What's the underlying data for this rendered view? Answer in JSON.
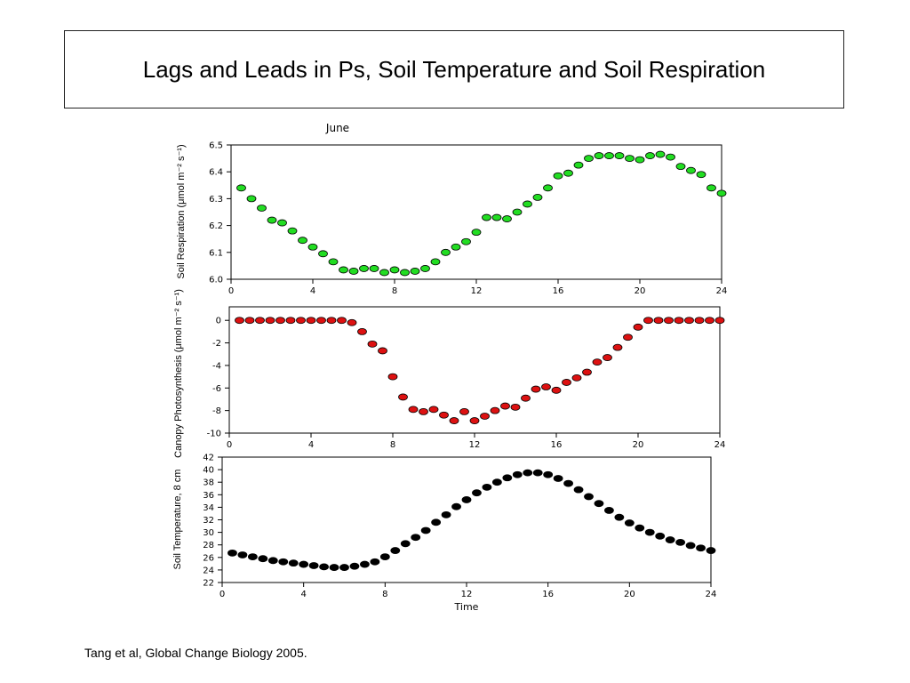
{
  "slide": {
    "title": "Lags and Leads in Ps, Soil Temperature and Soil Respiration",
    "caption": "Tang et al, Global Change Biology 2005."
  },
  "chart_data": [
    {
      "type": "scatter",
      "title": "June",
      "ylabel": "Soil Respiration (μmol m⁻² s⁻¹)",
      "xlabel": "",
      "xlim": [
        0,
        24
      ],
      "ylim": [
        6.0,
        6.5
      ],
      "xticks": [
        "0",
        "4",
        "8",
        "12",
        "16",
        "20",
        "24"
      ],
      "yticks": [
        "6.0",
        "6.1",
        "6.2",
        "6.3",
        "6.4",
        "6.5"
      ],
      "marker_color": "#22dd22",
      "x": [
        0.5,
        1.0,
        1.5,
        2.0,
        2.5,
        3.0,
        3.5,
        4.0,
        4.5,
        5.0,
        5.5,
        6.0,
        6.5,
        7.0,
        7.5,
        8.0,
        8.5,
        9.0,
        9.5,
        10.0,
        10.5,
        11.0,
        11.5,
        12.0,
        12.5,
        13.0,
        13.5,
        14.0,
        14.5,
        15.0,
        15.5,
        16.0,
        16.5,
        17.0,
        17.5,
        18.0,
        18.5,
        19.0,
        19.5,
        20.0,
        20.5,
        21.0,
        21.5,
        22.0,
        22.5,
        23.0,
        23.5,
        24.0
      ],
      "y": [
        6.34,
        6.3,
        6.265,
        6.22,
        6.21,
        6.18,
        6.145,
        6.12,
        6.095,
        6.065,
        6.035,
        6.03,
        6.04,
        6.04,
        6.025,
        6.035,
        6.025,
        6.03,
        6.04,
        6.065,
        6.1,
        6.12,
        6.14,
        6.175,
        6.23,
        6.23,
        6.225,
        6.25,
        6.28,
        6.305,
        6.34,
        6.385,
        6.395,
        6.425,
        6.45,
        6.46,
        6.46,
        6.46,
        6.45,
        6.445,
        6.46,
        6.465,
        6.455,
        6.42,
        6.405,
        6.39,
        6.34,
        6.32
      ]
    },
    {
      "type": "scatter",
      "title": "",
      "ylabel": "Canopy Photosynthesis (μmol m⁻² s⁻¹)",
      "xlabel": "",
      "xlim": [
        0,
        24
      ],
      "ylim": [
        -10,
        1.2
      ],
      "xticks": [
        "0",
        "4",
        "8",
        "12",
        "16",
        "20",
        "24"
      ],
      "yticks": [
        "0",
        "-2",
        "-4",
        "-6",
        "-8",
        "-10"
      ],
      "marker_color": "#dd1111",
      "x": [
        0.5,
        1.0,
        1.5,
        2.0,
        2.5,
        3.0,
        3.5,
        4.0,
        4.5,
        5.0,
        5.5,
        6.0,
        6.5,
        7.0,
        7.5,
        8.0,
        8.5,
        9.0,
        9.5,
        10.0,
        10.5,
        11.0,
        11.5,
        12.0,
        12.5,
        13.0,
        13.5,
        14.0,
        14.5,
        15.0,
        15.5,
        16.0,
        16.5,
        17.0,
        17.5,
        18.0,
        18.5,
        19.0,
        19.5,
        20.0,
        20.5,
        21.0,
        21.5,
        22.0,
        22.5,
        23.0,
        23.5,
        24.0
      ],
      "y": [
        0,
        0,
        0,
        0,
        0,
        0,
        0,
        0,
        0,
        0,
        0,
        -0.2,
        -1.0,
        -2.1,
        -2.7,
        -5.0,
        -6.8,
        -7.9,
        -8.1,
        -7.9,
        -8.4,
        -8.9,
        -8.1,
        -8.9,
        -8.5,
        -8.0,
        -7.6,
        -7.7,
        -6.9,
        -6.1,
        -5.9,
        -6.2,
        -5.5,
        -5.1,
        -4.6,
        -3.7,
        -3.3,
        -2.4,
        -1.5,
        -0.6,
        0,
        0,
        0,
        0,
        0,
        0,
        0,
        0
      ]
    },
    {
      "type": "scatter",
      "title": "",
      "ylabel": "Soil Temperature, 8 cm",
      "xlabel": "Time",
      "xlim": [
        0,
        24
      ],
      "ylim": [
        22,
        42
      ],
      "xticks": [
        "0",
        "4",
        "8",
        "12",
        "16",
        "20",
        "24"
      ],
      "yticks": [
        "22",
        "24",
        "26",
        "28",
        "30",
        "32",
        "34",
        "36",
        "38",
        "40",
        "42"
      ],
      "marker_color": "#000000",
      "x": [
        0.5,
        1.0,
        1.5,
        2.0,
        2.5,
        3.0,
        3.5,
        4.0,
        4.5,
        5.0,
        5.5,
        6.0,
        6.5,
        7.0,
        7.5,
        8.0,
        8.5,
        9.0,
        9.5,
        10.0,
        10.5,
        11.0,
        11.5,
        12.0,
        12.5,
        13.0,
        13.5,
        14.0,
        14.5,
        15.0,
        15.5,
        16.0,
        16.5,
        17.0,
        17.5,
        18.0,
        18.5,
        19.0,
        19.5,
        20.0,
        20.5,
        21.0,
        21.5,
        22.0,
        22.5,
        23.0,
        23.5,
        24.0
      ],
      "y": [
        26.7,
        26.4,
        26.1,
        25.8,
        25.5,
        25.3,
        25.1,
        24.9,
        24.7,
        24.5,
        24.4,
        24.4,
        24.6,
        24.9,
        25.3,
        26.1,
        27.1,
        28.2,
        29.2,
        30.3,
        31.6,
        32.8,
        34.1,
        35.2,
        36.3,
        37.2,
        38.0,
        38.7,
        39.2,
        39.5,
        39.5,
        39.2,
        38.6,
        37.8,
        36.8,
        35.7,
        34.6,
        33.5,
        32.4,
        31.5,
        30.7,
        30.0,
        29.4,
        28.8,
        28.4,
        27.9,
        27.5,
        27.1
      ]
    }
  ]
}
